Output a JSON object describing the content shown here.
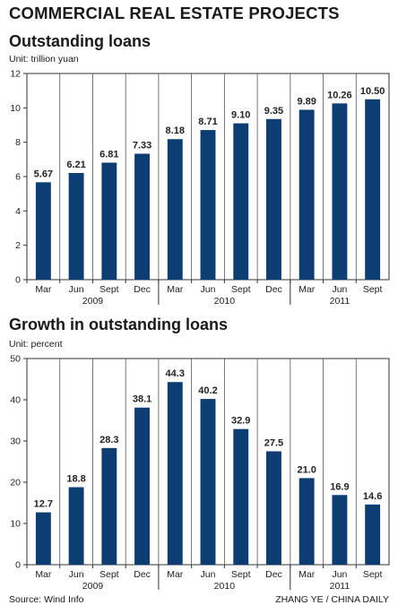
{
  "header": {
    "title": "COMMERCIAL REAL ESTATE PROJECTS"
  },
  "footer": {
    "source": "Source: Wind Info",
    "credit": "ZHANG YE / CHINA DAILY"
  },
  "chart_data": [
    {
      "type": "bar",
      "title": "Outstanding loans",
      "unit": "Unit: trillion yuan",
      "categories": [
        "Mar",
        "Jun",
        "Sept",
        "Dec",
        "Mar",
        "Jun",
        "Sept",
        "Dec",
        "Mar",
        "Jun",
        "Sept"
      ],
      "year_labels": [
        {
          "label": "2009",
          "from": 0,
          "to": 3
        },
        {
          "label": "2010",
          "from": 4,
          "to": 7
        },
        {
          "label": "2011",
          "from": 8,
          "to": 10
        }
      ],
      "values": [
        5.67,
        6.21,
        6.81,
        7.33,
        8.18,
        8.71,
        9.1,
        9.35,
        9.89,
        10.26,
        10.5
      ],
      "value_labels": [
        "5.67",
        "6.21",
        "6.81",
        "7.33",
        "8.18",
        "8.71",
        "9.10",
        "9.35",
        "9.89",
        "10.26",
        "10.50"
      ],
      "ylim": [
        0,
        12
      ],
      "yticks": [
        0,
        2,
        4,
        6,
        8,
        10,
        12
      ],
      "grid": "vertical",
      "bar_color": "#0d3e73"
    },
    {
      "type": "bar",
      "title": "Growth in outstanding loans",
      "unit": "Unit: percent",
      "categories": [
        "Mar",
        "Jun",
        "Sept",
        "Dec",
        "Mar",
        "Jun",
        "Sept",
        "Dec",
        "Mar",
        "Jun",
        "Sept"
      ],
      "year_labels": [
        {
          "label": "2009",
          "from": 0,
          "to": 3
        },
        {
          "label": "2010",
          "from": 4,
          "to": 7
        },
        {
          "label": "2011",
          "from": 8,
          "to": 10
        }
      ],
      "values": [
        12.7,
        18.8,
        28.3,
        38.1,
        44.3,
        40.2,
        32.9,
        27.5,
        21.0,
        16.9,
        14.6
      ],
      "value_labels": [
        "12.7",
        "18.8",
        "28.3",
        "38.1",
        "44.3",
        "40.2",
        "32.9",
        "27.5",
        "21.0",
        "16.9",
        "14.6"
      ],
      "ylim": [
        0,
        50
      ],
      "yticks": [
        0,
        10,
        20,
        30,
        40,
        50
      ],
      "grid": "vertical",
      "bar_color": "#0d3e73"
    }
  ]
}
